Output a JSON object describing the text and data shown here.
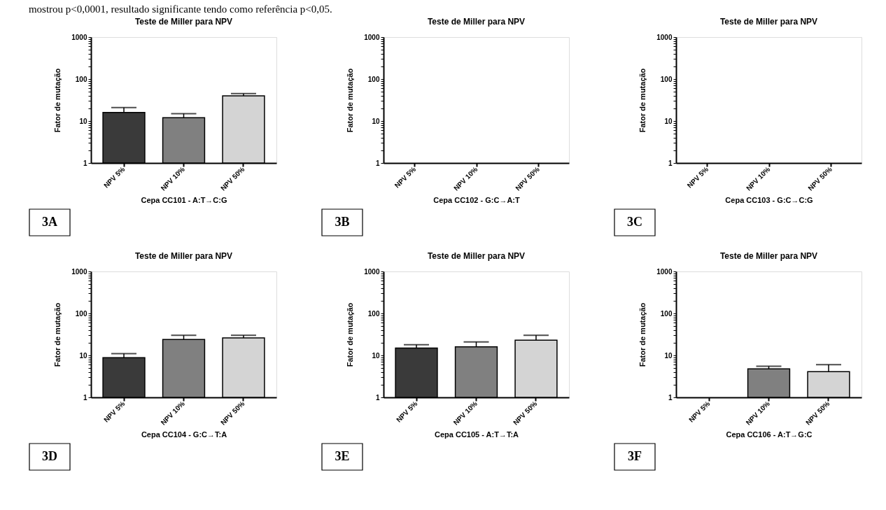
{
  "chart_data": [
    {
      "type": "other",
      "annotations": [
        "mostrou p<0,0001, resultado significante tendo como referência p<0,05."
      ]
    },
    {
      "type": "bar",
      "title": "Teste de Miller para NPV",
      "xlabel": "Cepa CC101 - A:T→C:G",
      "ylabel": "Fator de mutação",
      "categories": [
        "NPV 5%",
        "NPV 10%",
        "NPV 50%"
      ],
      "values": [
        16,
        12,
        40
      ],
      "errors": [
        [
          16,
          21
        ],
        [
          12,
          15
        ],
        [
          40,
          45
        ]
      ],
      "colors": [
        "#3a3a3a",
        "#808080",
        "#d4d4d4"
      ],
      "log": true,
      "ylim": [
        1,
        1000
      ],
      "yticks": [
        1,
        {
          "value": 2,
          "label": null
        },
        {
          "value": 3,
          "label": null
        },
        {
          "value": 4,
          "label": null
        },
        {
          "value": 5,
          "label": null
        },
        {
          "value": 6,
          "label": null
        },
        {
          "value": 7,
          "label": null
        },
        {
          "value": 8,
          "label": null
        },
        {
          "value": 9,
          "label": null
        },
        10,
        {
          "value": 20,
          "label": null
        },
        {
          "value": 30,
          "label": null
        },
        {
          "value": 40,
          "label": null
        },
        {
          "value": 50,
          "label": null
        },
        {
          "value": 60,
          "label": null
        },
        {
          "value": 70,
          "label": null
        },
        {
          "value": 80,
          "label": null
        },
        {
          "value": 90,
          "label": null
        },
        100,
        {
          "value": 200,
          "label": null
        },
        {
          "value": 300,
          "label": null
        },
        {
          "value": 400,
          "label": null
        },
        {
          "value": 500,
          "label": null
        },
        {
          "value": 600,
          "label": null
        },
        {
          "value": 700,
          "label": null
        },
        {
          "value": 800,
          "label": null
        },
        {
          "value": 900,
          "label": null
        },
        1000
      ],
      "grid": false,
      "annotations": [
        "3A"
      ]
    },
    {
      "type": "bar",
      "title": "Teste de Miller para NPV",
      "xlabel": "Cepa CC102 - G:C→A:T",
      "ylabel": "Fator de mutação",
      "categories": [
        "NPV 5%",
        "NPV 10%",
        "NPV 50%"
      ],
      "values": [
        null,
        null,
        null
      ],
      "log": true,
      "ylim": [
        1,
        1000
      ],
      "yticks": [
        1,
        {
          "value": 2,
          "label": null
        },
        {
          "value": 3,
          "label": null
        },
        {
          "value": 4,
          "label": null
        },
        {
          "value": 5,
          "label": null
        },
        {
          "value": 6,
          "label": null
        },
        {
          "value": 7,
          "label": null
        },
        {
          "value": 8,
          "label": null
        },
        {
          "value": 9,
          "label": null
        },
        10,
        {
          "value": 20,
          "label": null
        },
        {
          "value": 30,
          "label": null
        },
        {
          "value": 40,
          "label": null
        },
        {
          "value": 50,
          "label": null
        },
        {
          "value": 60,
          "label": null
        },
        {
          "value": 70,
          "label": null
        },
        {
          "value": 80,
          "label": null
        },
        {
          "value": 90,
          "label": null
        },
        100,
        {
          "value": 200,
          "label": null
        },
        {
          "value": 300,
          "label": null
        },
        {
          "value": 400,
          "label": null
        },
        {
          "value": 500,
          "label": null
        },
        {
          "value": 600,
          "label": null
        },
        {
          "value": 700,
          "label": null
        },
        {
          "value": 800,
          "label": null
        },
        {
          "value": 900,
          "label": null
        },
        1000
      ],
      "grid": false,
      "annotations": [
        "3B"
      ]
    },
    {
      "type": "bar",
      "title": "Teste de Miller para NPV",
      "xlabel": "Cepa CC103 - G:C→C:G",
      "ylabel": "Fator de mutação",
      "categories": [
        "NPV 5%",
        "NPV 10%",
        "NPV 50%"
      ],
      "values": [
        null,
        null,
        null
      ],
      "log": true,
      "ylim": [
        1,
        1000
      ],
      "yticks": [
        1,
        {
          "value": 2,
          "label": null
        },
        {
          "value": 3,
          "label": null
        },
        {
          "value": 4,
          "label": null
        },
        {
          "value": 5,
          "label": null
        },
        {
          "value": 6,
          "label": null
        },
        {
          "value": 7,
          "label": null
        },
        {
          "value": 8,
          "label": null
        },
        {
          "value": 9,
          "label": null
        },
        10,
        {
          "value": 20,
          "label": null
        },
        {
          "value": 30,
          "label": null
        },
        {
          "value": 40,
          "label": null
        },
        {
          "value": 50,
          "label": null
        },
        {
          "value": 60,
          "label": null
        },
        {
          "value": 70,
          "label": null
        },
        {
          "value": 80,
          "label": null
        },
        {
          "value": 90,
          "label": null
        },
        100,
        {
          "value": 200,
          "label": null
        },
        {
          "value": 300,
          "label": null
        },
        {
          "value": 400,
          "label": null
        },
        {
          "value": 500,
          "label": null
        },
        {
          "value": 600,
          "label": null
        },
        {
          "value": 700,
          "label": null
        },
        {
          "value": 800,
          "label": null
        },
        {
          "value": 900,
          "label": null
        },
        1000
      ],
      "grid": false,
      "annotations": [
        "3C"
      ]
    },
    {
      "type": "bar",
      "title": "Teste de Miller para NPV",
      "xlabel": "Cepa CC104 - G:C→T:A",
      "ylabel": "Fator de mutação",
      "categories": [
        "NPV 5%",
        "NPV 10%",
        "NPV 50%"
      ],
      "values": [
        8.8,
        24,
        26
      ],
      "errors": [
        [
          8.8,
          11
        ],
        [
          24,
          30
        ],
        [
          26,
          30
        ]
      ],
      "colors": [
        "#3a3a3a",
        "#808080",
        "#d4d4d4"
      ],
      "log": true,
      "ylim": [
        1,
        1000
      ],
      "yticks": [
        1,
        {
          "value": 2,
          "label": null
        },
        {
          "value": 3,
          "label": null
        },
        {
          "value": 4,
          "label": null
        },
        {
          "value": 5,
          "label": null
        },
        {
          "value": 6,
          "label": null
        },
        {
          "value": 7,
          "label": null
        },
        {
          "value": 8,
          "label": null
        },
        {
          "value": 9,
          "label": null
        },
        10,
        {
          "value": 20,
          "label": null
        },
        {
          "value": 30,
          "label": null
        },
        {
          "value": 40,
          "label": null
        },
        {
          "value": 50,
          "label": null
        },
        {
          "value": 60,
          "label": null
        },
        {
          "value": 70,
          "label": null
        },
        {
          "value": 80,
          "label": null
        },
        {
          "value": 90,
          "label": null
        },
        100,
        {
          "value": 200,
          "label": null
        },
        {
          "value": 300,
          "label": null
        },
        {
          "value": 400,
          "label": null
        },
        {
          "value": 500,
          "label": null
        },
        {
          "value": 600,
          "label": null
        },
        {
          "value": 700,
          "label": null
        },
        {
          "value": 800,
          "label": null
        },
        {
          "value": 900,
          "label": null
        },
        1000
      ],
      "grid": false,
      "annotations": [
        "3D"
      ]
    },
    {
      "type": "bar",
      "title": "Teste de Miller para NPV",
      "xlabel": "Cepa CC105 - A:T→T:A",
      "ylabel": "Fator de mutação",
      "categories": [
        "NPV 5%",
        "NPV 10%",
        "NPV 50%"
      ],
      "values": [
        15,
        16,
        23
      ],
      "errors": [
        [
          15,
          18
        ],
        [
          16,
          21
        ],
        [
          23,
          30
        ]
      ],
      "colors": [
        "#3a3a3a",
        "#808080",
        "#d4d4d4"
      ],
      "log": true,
      "ylim": [
        1,
        1000
      ],
      "yticks": [
        1,
        {
          "value": 2,
          "label": null
        },
        {
          "value": 3,
          "label": null
        },
        {
          "value": 4,
          "label": null
        },
        {
          "value": 5,
          "label": null
        },
        {
          "value": 6,
          "label": null
        },
        {
          "value": 7,
          "label": null
        },
        {
          "value": 8,
          "label": null
        },
        {
          "value": 9,
          "label": null
        },
        10,
        {
          "value": 20,
          "label": null
        },
        {
          "value": 30,
          "label": null
        },
        {
          "value": 40,
          "label": null
        },
        {
          "value": 50,
          "label": null
        },
        {
          "value": 60,
          "label": null
        },
        {
          "value": 70,
          "label": null
        },
        {
          "value": 80,
          "label": null
        },
        {
          "value": 90,
          "label": null
        },
        100,
        {
          "value": 200,
          "label": null
        },
        {
          "value": 300,
          "label": null
        },
        {
          "value": 400,
          "label": null
        },
        {
          "value": 500,
          "label": null
        },
        {
          "value": 600,
          "label": null
        },
        {
          "value": 700,
          "label": null
        },
        {
          "value": 800,
          "label": null
        },
        {
          "value": 900,
          "label": null
        },
        1000
      ],
      "grid": false,
      "annotations": [
        "3E"
      ]
    },
    {
      "type": "bar",
      "title": "Teste de Miller para NPV",
      "xlabel": "Cepa CC106 - A:T→G:C",
      "ylabel": "Fator de mutação",
      "categories": [
        "NPV 5%",
        "NPV 10%",
        "NPV 50%"
      ],
      "values": [
        null,
        4.8,
        4.1
      ],
      "errors": [
        null,
        [
          4.8,
          5.5
        ],
        [
          4.1,
          6
        ]
      ],
      "colors": [
        "#3a3a3a",
        "#808080",
        "#d4d4d4"
      ],
      "log": true,
      "ylim": [
        1,
        1000
      ],
      "yticks": [
        1,
        {
          "value": 2,
          "label": null
        },
        {
          "value": 3,
          "label": null
        },
        {
          "value": 4,
          "label": null
        },
        {
          "value": 5,
          "label": null
        },
        {
          "value": 6,
          "label": null
        },
        {
          "value": 7,
          "label": null
        },
        {
          "value": 8,
          "label": null
        },
        {
          "value": 9,
          "label": null
        },
        10,
        {
          "value": 20,
          "label": null
        },
        {
          "value": 30,
          "label": null
        },
        {
          "value": 40,
          "label": null
        },
        {
          "value": 50,
          "label": null
        },
        {
          "value": 60,
          "label": null
        },
        {
          "value": 70,
          "label": null
        },
        {
          "value": 80,
          "label": null
        },
        {
          "value": 90,
          "label": null
        },
        100,
        {
          "value": 200,
          "label": null
        },
        {
          "value": 300,
          "label": null
        },
        {
          "value": 400,
          "label": null
        },
        {
          "value": 500,
          "label": null
        },
        {
          "value": 600,
          "label": null
        },
        {
          "value": 700,
          "label": null
        },
        {
          "value": 800,
          "label": null
        },
        {
          "value": 900,
          "label": null
        },
        1000
      ],
      "grid": false,
      "annotations": [
        "3F"
      ]
    }
  ]
}
